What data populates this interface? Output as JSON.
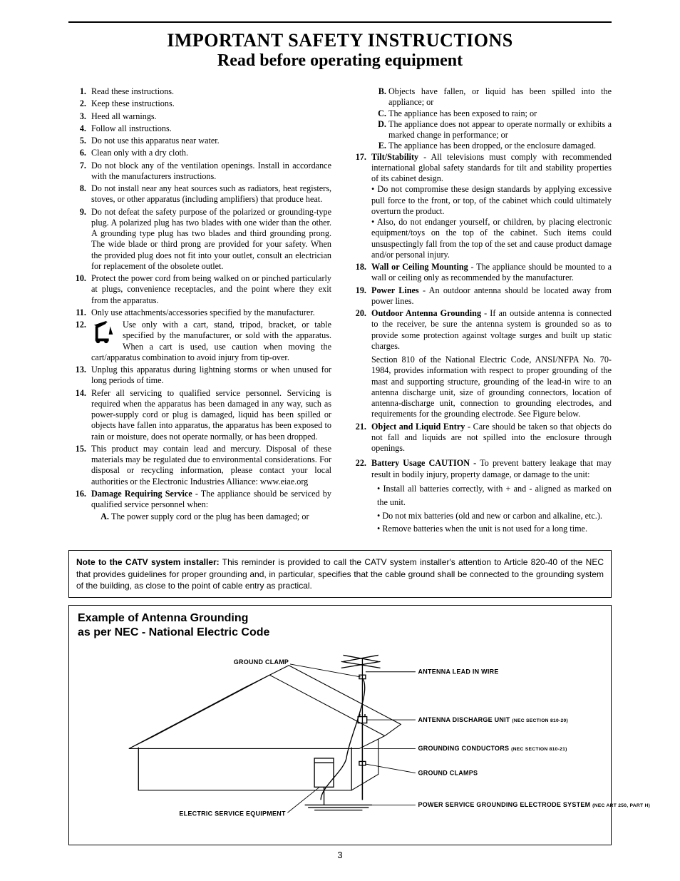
{
  "title_line1": "IMPORTANT SAFETY INSTRUCTIONS",
  "title_line2": "Read before operating equipment",
  "left_items": [
    {
      "n": "1",
      "text": "Read these instructions."
    },
    {
      "n": "2",
      "text": "Keep these instructions."
    },
    {
      "n": "3",
      "text": "Heed all warnings."
    },
    {
      "n": "4",
      "text": "Follow all instructions."
    },
    {
      "n": "5",
      "text": "Do not use this apparatus near water."
    },
    {
      "n": "6",
      "text": "Clean only with a dry cloth."
    },
    {
      "n": "7",
      "text": "Do not block any of the ventilation openings. Install in accordance with the manufacturers instructions."
    },
    {
      "n": "8",
      "text": "Do not install near any heat sources such as radiators, heat registers, stoves, or other apparatus (including amplifiers) that produce heat."
    },
    {
      "n": "9",
      "text": "Do not defeat the safety purpose of the polarized or grounding-type plug. A polarized plug has two blades with one wider than the other. A grounding type plug has two blades and third grounding prong. The wide blade or third prong are provided for your safety. When the provided plug does not fit into your outlet, consult an electrician for replacement of the obsolete outlet."
    },
    {
      "n": "10",
      "text": "Protect the power cord from being walked on or pinched particularly at plugs, convenience receptacles, and the point where they exit from the apparatus."
    },
    {
      "n": "11",
      "text": "Only use attachments/accessories specified by the manufacturer."
    },
    {
      "n": "12",
      "text": "Use only with a cart, stand, tripod, bracket, or table specified by the manufacturer, or sold with the apparatus. When a cart is used, use caution when moving the cart/apparatus combination to avoid injury from tip-over."
    },
    {
      "n": "13",
      "text": "Unplug this apparatus during lightning storms or when unused for long periods of time."
    },
    {
      "n": "14",
      "text": "Refer all servicing to qualified service personnel. Servicing is required when the apparatus has been damaged in any way, such as power-supply cord or plug is damaged, liquid has been spilled or objects have fallen into apparatus, the apparatus has been exposed to rain or moisture, does not operate normally, or has been dropped."
    },
    {
      "n": "15",
      "text": "This product may contain lead and mercury. Disposal of these materials may be regulated due to environmental considerations. For disposal or recycling information, please contact your local authorities or the Electronic Industries Alliance: www.eiae.org"
    }
  ],
  "item16_bold": "Damage Requiring Service",
  "item16_rest": " - The appliance should be serviced by qualified service personnel when:",
  "item16_sub_a": "The power supply cord or the plug has been damaged; or",
  "right_sub_b": "Objects have fallen, or liquid has been spilled into the appliance; or",
  "right_sub_c": "The appliance has been exposed to rain; or",
  "right_sub_d": "The appliance does not appear to operate normally or exhibits a marked change in performance; or",
  "right_sub_e": "The appliance has been dropped, or the enclosure damaged.",
  "item17_bold": "Tilt/Stability",
  "item17_rest": " - All televisions must comply with recommended international global safety standards for tilt and stability properties of its cabinet design.",
  "item17_b1": "• Do not compromise these design standards by applying excessive pull force to the front, or top, of the cabinet which could ultimately overturn the product.",
  "item17_b2": "• Also, do not endanger yourself, or children, by placing electronic equipment/toys on the top of the cabinet. Such items could unsuspectingly fall from the top of the set and cause product damage and/or personal injury.",
  "item18_bold": "Wall or Ceiling Mounting",
  "item18_rest": " - The appliance should be mounted to a wall or ceiling only as recommended by the manufacturer.",
  "item19_bold": "Power Lines",
  "item19_rest": " - An outdoor antenna should be located away from power lines.",
  "item20_bold": "Outdoor Antenna Grounding",
  "item20_rest": " - If an outside antenna is connected to the receiver, be sure the antenna system is grounded so as to provide some protection against voltage surges and built up static charges.",
  "item20_p2": "Section 810 of the National Electric Code, ANSI/NFPA No. 70-1984, provides information with respect to proper grounding of the mast and supporting structure, grounding of the lead-in wire to an antenna discharge unit, size of grounding connectors, location of antenna-discharge unit, connection to grounding electrodes, and requirements for the grounding electrode. See Figure below.",
  "item21_bold": "Object and Liquid Entry",
  "item21_rest": " - Care should be taken so that objects do not fall and liquids are not spilled into the enclosure through openings.",
  "item22_bold": "Battery Usage CAUTION - ",
  "item22_rest": "To prevent battery leakage that may result in bodily injury, property damage, or damage to the unit:",
  "item22_b1": "• Install all batteries correctly, with + and - aligned as marked on the unit.",
  "item22_b2": "• Do not mix batteries (old and new or carbon and alkaline, etc.).",
  "item22_b3": "• Remove batteries when the unit is not used for a long time.",
  "note_bold": "Note to the CATV system installer:",
  "note_rest": " This reminder is provided to call the CATV system installer's attention to Article 820-40 of the NEC that provides guidelines for proper grounding and, in particular, specifies that the cable ground shall be connected to the grounding system of the building, as close to the point of cable entry as practical.",
  "diagram_title_l1": "Example of Antenna Grounding",
  "diagram_title_l2": "as per NEC - National Electric Code",
  "lbl_ground_clamp": "GROUND CLAMP",
  "lbl_antenna_lead": "ANTENNA LEAD IN WIRE",
  "lbl_discharge": "ANTENNA DISCHARGE UNIT ",
  "lbl_discharge_sec": "(NEC SECTION 810-20)",
  "lbl_conductors": "GROUNDING CONDUCTORS ",
  "lbl_conductors_sec": "(NEC SECTION 810-21)",
  "lbl_clamps": "GROUND CLAMPS",
  "lbl_electric_service": "ELECTRIC SERVICE EQUIPMENT",
  "lbl_power_service": "POWER SERVICE GROUNDING ELECTRODE SYSTEM ",
  "lbl_power_service_sec": "(NEC ART 250, PART H)",
  "page_number": "3"
}
